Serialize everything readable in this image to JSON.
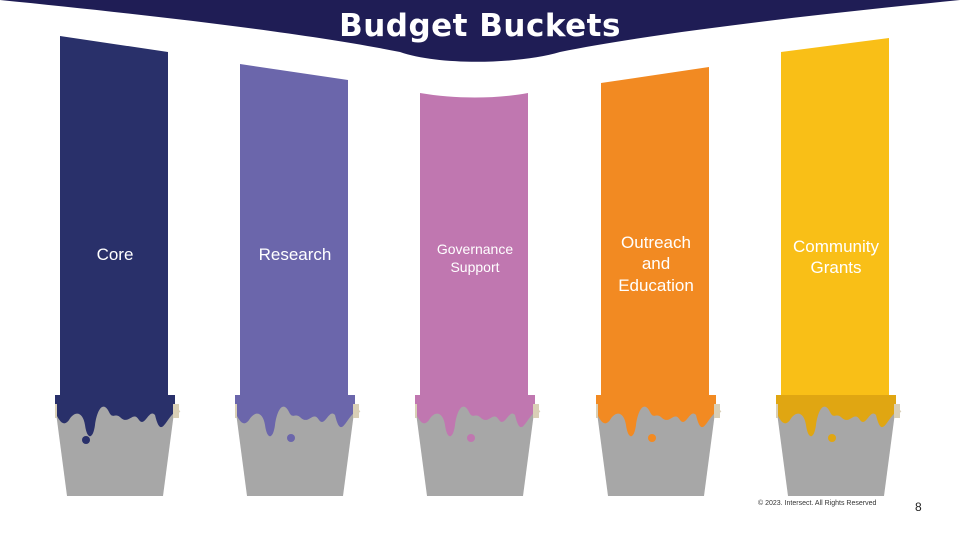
{
  "title": "Budget Buckets",
  "colors": {
    "banner": "#1f1d55",
    "bucket": "#a7a7a7",
    "handle": "#d9cfb6"
  },
  "buckets": [
    {
      "label": "Core",
      "color": "#29306a"
    },
    {
      "label": "Research",
      "color": "#6b66ab"
    },
    {
      "label": "Governance Support",
      "color": "#c077b0"
    },
    {
      "label": "Outreach and Education",
      "color": "#f28a22"
    },
    {
      "label": "Community Grants",
      "color": "#f9bf17"
    }
  ],
  "footer": "© 2023. Intersect. All Rights Reserved",
  "page_number": "8"
}
